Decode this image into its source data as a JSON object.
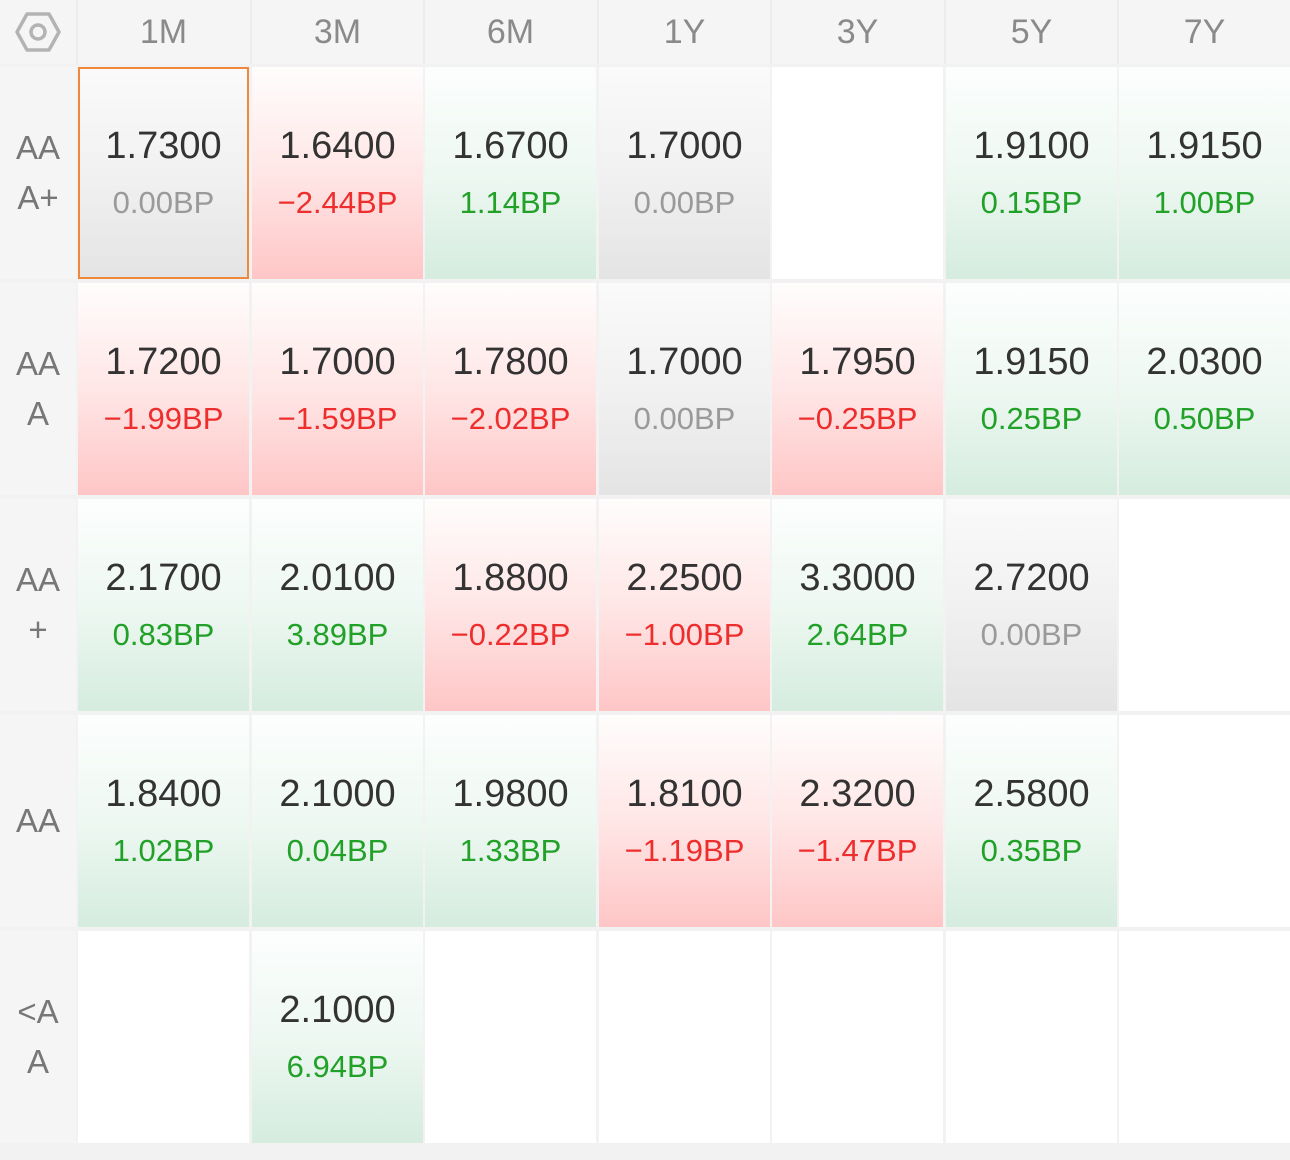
{
  "settings_icon": "settings-hexagon-icon",
  "colors": {
    "up": "#21a128",
    "down": "#ee2d2d",
    "flat": "#9a9a9a",
    "selected_border": "#f0883c"
  },
  "tenors": [
    "1M",
    "3M",
    "6M",
    "1Y",
    "3Y",
    "5Y",
    "7Y"
  ],
  "ratings": [
    "AAA+",
    "AAA",
    "AA+",
    "AA",
    "<AA"
  ],
  "selected": [
    0,
    0
  ],
  "grid": [
    [
      {
        "rate": "1.7300",
        "change": "0.00BP",
        "trend": "flat"
      },
      {
        "rate": "1.6400",
        "change": "−2.44BP",
        "trend": "down"
      },
      {
        "rate": "1.6700",
        "change": "1.14BP",
        "trend": "up"
      },
      {
        "rate": "1.7000",
        "change": "0.00BP",
        "trend": "flat"
      },
      null,
      {
        "rate": "1.9100",
        "change": "0.15BP",
        "trend": "up"
      },
      {
        "rate": "1.9150",
        "change": "1.00BP",
        "trend": "up"
      }
    ],
    [
      {
        "rate": "1.7200",
        "change": "−1.99BP",
        "trend": "down"
      },
      {
        "rate": "1.7000",
        "change": "−1.59BP",
        "trend": "down"
      },
      {
        "rate": "1.7800",
        "change": "−2.02BP",
        "trend": "down"
      },
      {
        "rate": "1.7000",
        "change": "0.00BP",
        "trend": "flat"
      },
      {
        "rate": "1.7950",
        "change": "−0.25BP",
        "trend": "down"
      },
      {
        "rate": "1.9150",
        "change": "0.25BP",
        "trend": "up"
      },
      {
        "rate": "2.0300",
        "change": "0.50BP",
        "trend": "up"
      }
    ],
    [
      {
        "rate": "2.1700",
        "change": "0.83BP",
        "trend": "up"
      },
      {
        "rate": "2.0100",
        "change": "3.89BP",
        "trend": "up"
      },
      {
        "rate": "1.8800",
        "change": "−0.22BP",
        "trend": "down"
      },
      {
        "rate": "2.2500",
        "change": "−1.00BP",
        "trend": "down"
      },
      {
        "rate": "3.3000",
        "change": "2.64BP",
        "trend": "up"
      },
      {
        "rate": "2.7200",
        "change": "0.00BP",
        "trend": "flat"
      },
      null
    ],
    [
      {
        "rate": "1.8400",
        "change": "1.02BP",
        "trend": "up"
      },
      {
        "rate": "2.1000",
        "change": "0.04BP",
        "trend": "up"
      },
      {
        "rate": "1.9800",
        "change": "1.33BP",
        "trend": "up"
      },
      {
        "rate": "1.8100",
        "change": "−1.19BP",
        "trend": "down"
      },
      {
        "rate": "2.3200",
        "change": "−1.47BP",
        "trend": "down"
      },
      {
        "rate": "2.5800",
        "change": "0.35BP",
        "trend": "up"
      },
      null
    ],
    [
      null,
      {
        "rate": "2.1000",
        "change": "6.94BP",
        "trend": "up"
      },
      null,
      null,
      null,
      null,
      null
    ]
  ]
}
